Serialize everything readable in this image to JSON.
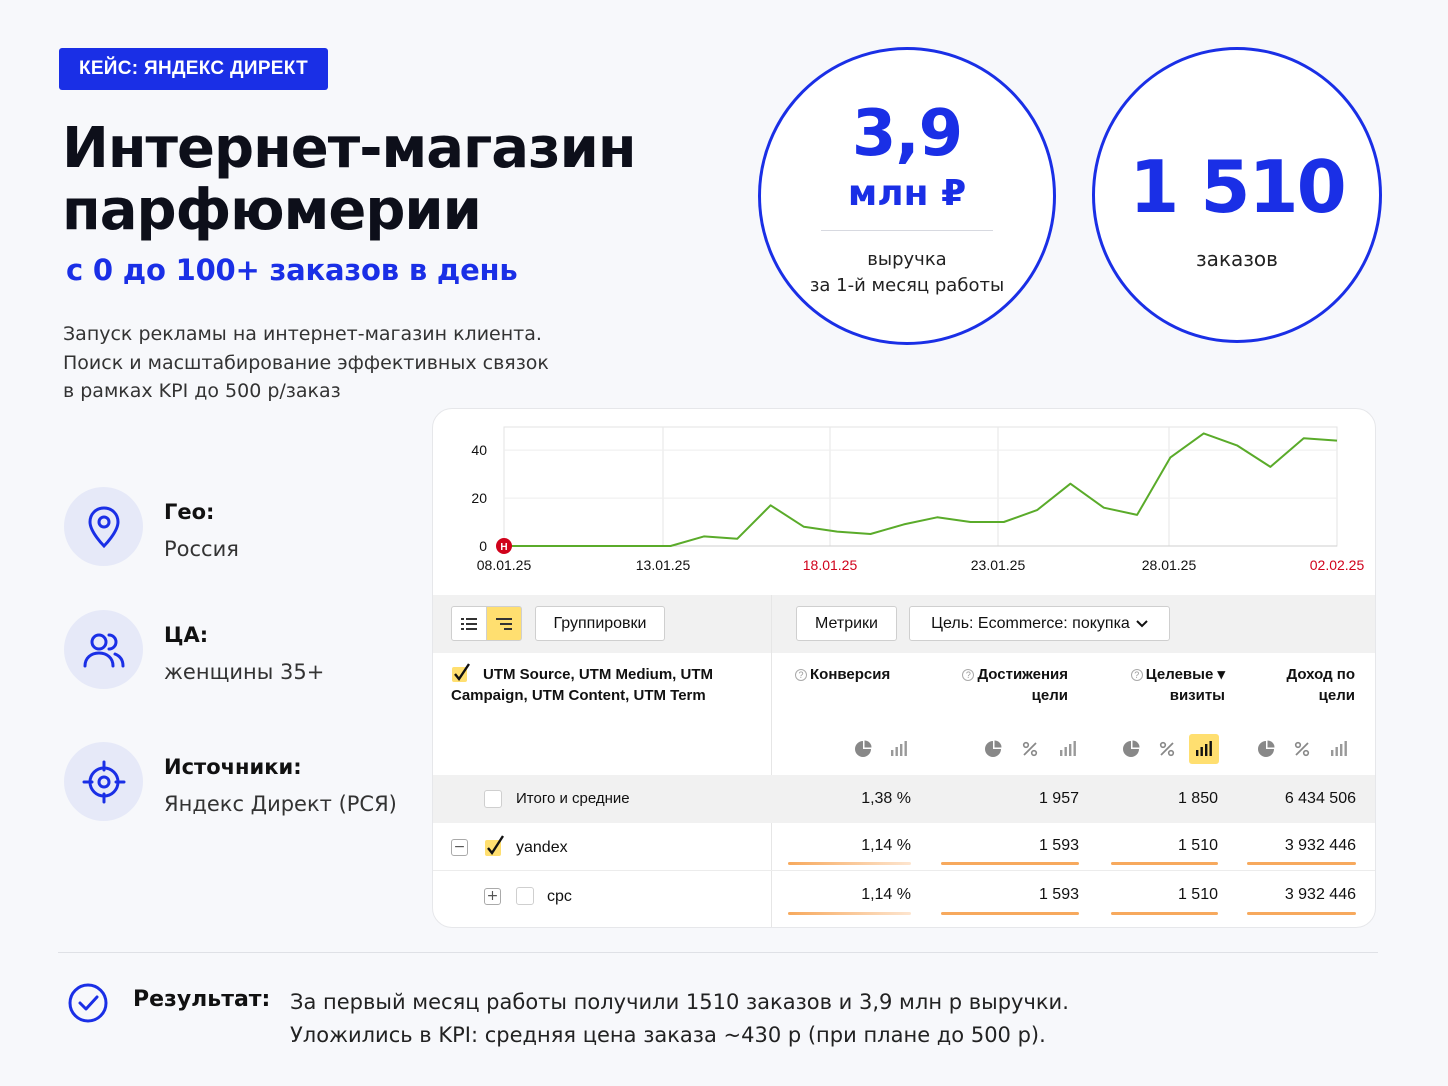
{
  "badge": "КЕЙС: ЯНДЕКС ДИРЕКТ",
  "title": {
    "line1": "Интернет-магазин",
    "line2": "парфюмерии"
  },
  "subtitle": "с 0 до 100+ заказов в день",
  "description": [
    "Запуск рекламы на интернет-магазин клиента.",
    "Поиск и масштабирование эффективных связок",
    "в рамках KPI до 500 р/заказ"
  ],
  "stats": {
    "revenue": {
      "value": "3,9",
      "unit": "млн ₽",
      "caption1": "выручка",
      "caption2": "за 1-й месяц работы"
    },
    "orders": {
      "value": "1 510",
      "caption": "заказов"
    }
  },
  "info": [
    {
      "icon": "location-pin-icon",
      "label": "Гео:",
      "value": "Россия"
    },
    {
      "icon": "users-icon",
      "label": "ЦА:",
      "value": "женщины 35+"
    },
    {
      "icon": "target-icon",
      "label": "Источники:",
      "value": "Яндекс Директ (РСЯ)"
    }
  ],
  "chart_data": {
    "type": "line",
    "y_ticks": [
      "0",
      "20",
      "40"
    ],
    "ylim": [
      0,
      48
    ],
    "x_ticks": [
      {
        "label": "08.01.25",
        "weekend": false
      },
      {
        "label": "13.01.25",
        "weekend": false
      },
      {
        "label": "18.01.25",
        "weekend": true
      },
      {
        "label": "23.01.25",
        "weekend": false
      },
      {
        "label": "28.01.25",
        "weekend": false
      },
      {
        "label": "02.02.25",
        "weekend": true
      }
    ],
    "series": [
      {
        "values": [
          0,
          0,
          0,
          0,
          0,
          0,
          4,
          3,
          17,
          8,
          6,
          5,
          9,
          12,
          10,
          10,
          15,
          26,
          16,
          13,
          37,
          47,
          42,
          33,
          45,
          44
        ],
        "color": "#5aab2a"
      }
    ],
    "marker": {
      "text": "Н",
      "color": "#d0021b"
    },
    "grid": true
  },
  "toolbar": {
    "groupings": "Группировки",
    "metrics": "Метрики",
    "goal": "Цель: Ecommerce: покупка"
  },
  "table": {
    "dimension_header": [
      "UTM Source, UTM Medium, UTM",
      "Campaign, UTM Content, UTM Term"
    ],
    "columns": [
      {
        "line1": "Конверсия",
        "line2": "",
        "help": true
      },
      {
        "line1": "Достижения",
        "line2": "цели",
        "help": true
      },
      {
        "line1": "Целевые ▾",
        "line2": "визиты",
        "help": true
      },
      {
        "line1": "Доход по",
        "line2": "цели",
        "help": false
      }
    ],
    "rows": [
      {
        "name": "Итого и средние",
        "values": [
          "1,38 %",
          "1 957",
          "1 850",
          "6 434 506"
        ]
      },
      {
        "name": "yandex",
        "values": [
          "1,14 %",
          "1 593",
          "1 510",
          "3 932 446"
        ]
      },
      {
        "name": "cpc",
        "values": [
          "1,14 %",
          "1 593",
          "1 510",
          "3 932 446"
        ]
      }
    ]
  },
  "result": {
    "label": "Результат:",
    "line1": "За первый месяц работы получили 1510 заказов и 3,9 млн р выручки.",
    "line2": "Уложились в KPI: средняя цена заказа ~430 р (при плане до 500 р)."
  },
  "colors": {
    "accent": "#1a2fe6",
    "line": "#5aab2a",
    "bar": "#f7a95d",
    "highlight": "#ffdf70"
  }
}
